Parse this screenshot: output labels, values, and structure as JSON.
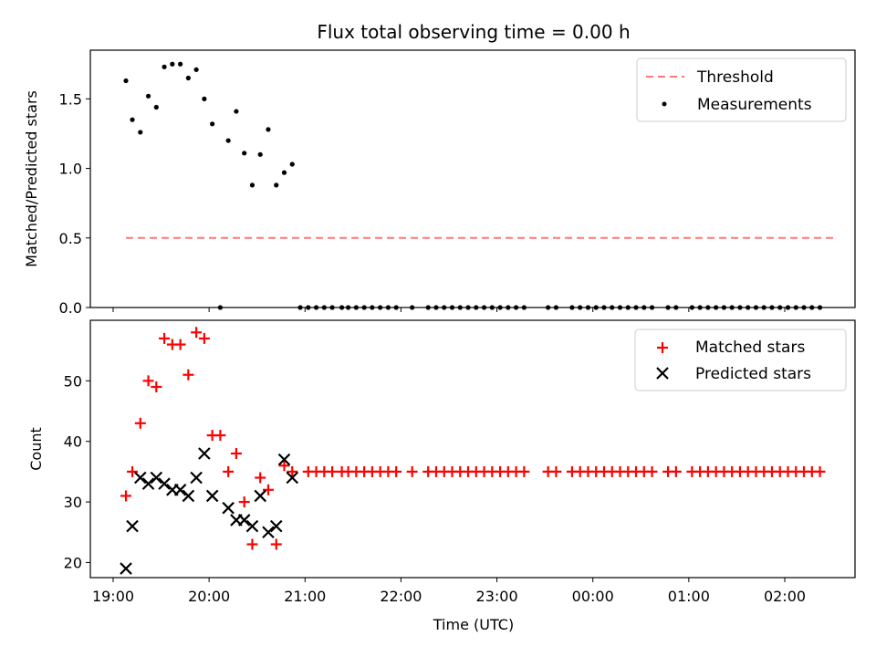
{
  "chart_data": [
    {
      "type": "scatter",
      "title": "Flux total observing time = 0.00 h",
      "xlabel": "",
      "ylabel": "Matched/Predicted stars",
      "ylim": [
        0,
        1.85
      ],
      "xlim": [
        "19:00",
        "02:36"
      ],
      "yticks": [
        0.0,
        0.5,
        1.0,
        1.5
      ],
      "legend_position": "top-right",
      "threshold": {
        "name": "Threshold",
        "value": 0.5,
        "x_range": [
          "19:08",
          "02:33"
        ],
        "color": "#ff7777",
        "style": "dashed"
      },
      "series": [
        {
          "name": "Measurements",
          "color": "#000000",
          "marker": "dot",
          "x": [
            "19:08",
            "19:12",
            "19:17",
            "19:22",
            "19:27",
            "19:32",
            "19:37",
            "19:42",
            "19:47",
            "19:52",
            "19:57",
            "20:02",
            "20:12",
            "20:17",
            "20:22",
            "20:27",
            "20:32",
            "20:37",
            "20:42",
            "20:47",
            "20:52",
            "20:57",
            "21:02",
            "21:07",
            "21:12",
            "21:17",
            "21:23",
            "21:27",
            "21:32",
            "21:37",
            "21:42",
            "21:47",
            "21:52",
            "21:57",
            "22:07",
            "22:17",
            "22:22",
            "22:27",
            "22:32",
            "22:37",
            "22:42",
            "22:47",
            "22:52",
            "22:57",
            "23:02",
            "23:07",
            "23:12",
            "23:17",
            "23:32",
            "23:37",
            "23:47",
            "23:52",
            "23:57",
            "00:02",
            "00:07",
            "00:12",
            "00:17",
            "00:22",
            "00:27",
            "00:32",
            "00:37",
            "00:47",
            "00:52",
            "01:02",
            "01:07",
            "01:12",
            "01:17",
            "01:22",
            "01:27",
            "01:32",
            "01:37",
            "01:42",
            "01:47",
            "01:52",
            "01:57",
            "02:02",
            "02:07",
            "02:12",
            "02:17",
            "02:22"
          ],
          "values": [
            1.63,
            1.35,
            1.26,
            1.52,
            1.44,
            1.73,
            1.75,
            1.75,
            1.65,
            1.71,
            1.5,
            1.32,
            1.2,
            1.41,
            1.11,
            0.88,
            1.1,
            1.28,
            0.88,
            0.97,
            1.03,
            0,
            0,
            0,
            0,
            0,
            0,
            0,
            0,
            0,
            0,
            0,
            0,
            0,
            0,
            0,
            0,
            0,
            0,
            0,
            0,
            0,
            0,
            0,
            0,
            0,
            0,
            0,
            0,
            0,
            0,
            0,
            0,
            0,
            0,
            0,
            0,
            0,
            0,
            0,
            0,
            0,
            0,
            0,
            0,
            0,
            0,
            0,
            0,
            0,
            0,
            0,
            0,
            0,
            0,
            0,
            0,
            0,
            0,
            0
          ],
          "extra_points": [
            {
              "x": "20:07",
              "y": 0
            }
          ]
        }
      ]
    },
    {
      "type": "scatter",
      "title": "",
      "xlabel": "Time (UTC)",
      "ylabel": "Count",
      "ylim": [
        17.5,
        60
      ],
      "xlim": [
        "19:00",
        "02:36"
      ],
      "yticks": [
        20,
        30,
        40,
        50
      ],
      "xticks": [
        "19:00",
        "20:00",
        "21:00",
        "22:00",
        "23:00",
        "00:00",
        "01:00",
        "02:00"
      ],
      "legend_position": "top-right",
      "series": [
        {
          "name": "Matched stars",
          "color": "#ff0000",
          "marker": "plus",
          "x": [
            "19:08",
            "19:12",
            "19:17",
            "19:22",
            "19:27",
            "19:32",
            "19:37",
            "19:42",
            "19:47",
            "19:52",
            "19:57",
            "20:02",
            "20:07",
            "20:12",
            "20:17",
            "20:22",
            "20:27",
            "20:32",
            "20:37",
            "20:42",
            "20:47",
            "20:52",
            "21:02",
            "21:07",
            "21:12",
            "21:17",
            "21:23",
            "21:27",
            "21:32",
            "21:37",
            "21:42",
            "21:47",
            "21:52",
            "21:57",
            "22:07",
            "22:17",
            "22:22",
            "22:27",
            "22:32",
            "22:37",
            "22:42",
            "22:47",
            "22:52",
            "22:57",
            "23:02",
            "23:07",
            "23:12",
            "23:17",
            "23:32",
            "23:37",
            "23:47",
            "23:52",
            "23:57",
            "00:02",
            "00:07",
            "00:12",
            "00:17",
            "00:22",
            "00:27",
            "00:32",
            "00:37",
            "00:47",
            "00:52",
            "01:02",
            "01:07",
            "01:12",
            "01:17",
            "01:22",
            "01:27",
            "01:32",
            "01:37",
            "01:42",
            "01:47",
            "01:52",
            "01:57",
            "02:02",
            "02:07",
            "02:12",
            "02:17",
            "02:22"
          ],
          "values": [
            31,
            35,
            43,
            50,
            49,
            57,
            56,
            56,
            51,
            58,
            57,
            41,
            41,
            35,
            38,
            30,
            23,
            34,
            32,
            23,
            36,
            35,
            35,
            35,
            35,
            35,
            35,
            35,
            35,
            35,
            35,
            35,
            35,
            35,
            35,
            35,
            35,
            35,
            35,
            35,
            35,
            35,
            35,
            35,
            35,
            35,
            35,
            35,
            35,
            35,
            35,
            35,
            35,
            35,
            35,
            35,
            35,
            35,
            35,
            35,
            35,
            35,
            35,
            35,
            35,
            35,
            35,
            35,
            35,
            35,
            35,
            35,
            35,
            35,
            35,
            35,
            35,
            35,
            35,
            35
          ]
        },
        {
          "name": "Predicted stars",
          "color": "#000000",
          "marker": "x",
          "x": [
            "19:08",
            "19:12",
            "19:17",
            "19:22",
            "19:27",
            "19:32",
            "19:37",
            "19:42",
            "19:47",
            "19:52",
            "19:57",
            "20:02",
            "20:12",
            "20:17",
            "20:22",
            "20:27",
            "20:32",
            "20:37",
            "20:42",
            "20:47",
            "20:52"
          ],
          "values": [
            19,
            26,
            34,
            33,
            34,
            33,
            32,
            32,
            31,
            34,
            38,
            31,
            29,
            27,
            27,
            26,
            31,
            25,
            26,
            37,
            34
          ]
        }
      ]
    }
  ]
}
